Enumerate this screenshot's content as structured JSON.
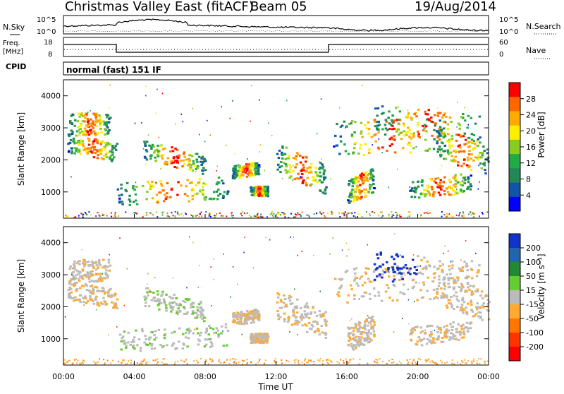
{
  "header": {
    "radar": "Christmas Valley East (fitACF)",
    "beam": "Beam 05",
    "date": "19/Aug/2014"
  },
  "summary_panel": {
    "nsky_label": "N.Sky",
    "nsky_ticks": [
      "10^5",
      "10^0"
    ],
    "nsearch_label": "N.Search",
    "freq_label_line1": "Freq.",
    "freq_label_line2": "[MHz]",
    "freq_ticks": [
      "18",
      "8"
    ],
    "nave_ticks": [
      "60",
      "0"
    ],
    "nave_label": "Nave",
    "cpid_label": "CPID",
    "cpid_text": "normal (fast) 151 IF"
  },
  "chart_data": [
    {
      "type": "heatmap",
      "name": "power",
      "ylabel": "Slant Range [km]",
      "ylim": [
        180,
        4500
      ],
      "xlim": [
        0,
        24
      ],
      "yticks": [
        "1000",
        "2000",
        "3000",
        "4000"
      ],
      "colorbar_label": "Power [dB]",
      "colorbar_ticks": [
        "28",
        "24",
        "20",
        "16",
        "12",
        "8",
        "4"
      ],
      "colorbar_colors": [
        "#ff0000",
        "#ff6600",
        "#ffaa00",
        "#ffee00",
        "#88cc22",
        "#22aa44",
        "#228855",
        "#1155aa",
        "#0000ff"
      ]
    },
    {
      "type": "heatmap",
      "name": "velocity",
      "ylabel": "Slant Range [km]",
      "ylim": [
        180,
        4500
      ],
      "xlim": [
        0,
        24
      ],
      "yticks": [
        "1000",
        "2000",
        "3000",
        "4000"
      ],
      "colorbar_label": "Velocity [m s⁻¹]",
      "colorbar_ticks": [
        "200",
        "100",
        "50",
        "15",
        "-15",
        "-50",
        "-100",
        "-200"
      ],
      "colorbar_colors": [
        "#1133cc",
        "#2266aa",
        "#228833",
        "#66cc33",
        "#bbbbbb",
        "#ffaa33",
        "#ff7700",
        "#ff3300",
        "#ff0000"
      ]
    }
  ],
  "x_axis": {
    "ticks": [
      "00:00",
      "04:00",
      "08:00",
      "12:00",
      "16:00",
      "20:00",
      "00:00"
    ],
    "label": "Time UT"
  }
}
